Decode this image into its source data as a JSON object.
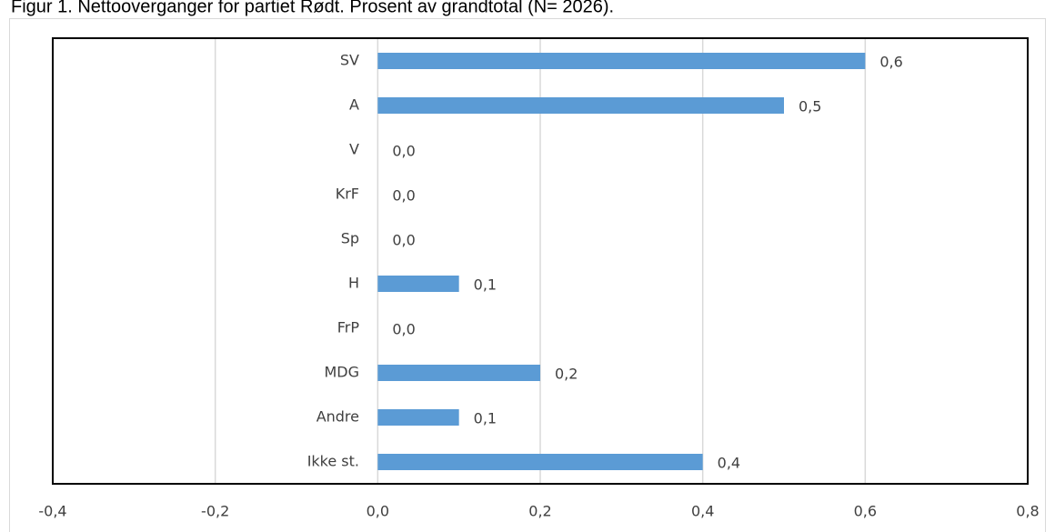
{
  "chart_data": {
    "type": "barh",
    "title": "Figur 1. Nettooverganger for partiet Rødt. Prosent av grandtotal (N= 2026).",
    "categories": [
      "SV",
      "A",
      "V",
      "KrF",
      "Sp",
      "H",
      "FrP",
      "MDG",
      "Andre",
      "Ikke st."
    ],
    "values": [
      0.6,
      0.5,
      0.0,
      0.0,
      0.0,
      0.1,
      0.0,
      0.2,
      0.1,
      0.4
    ],
    "value_labels": [
      "0,6",
      "0,5",
      "0,0",
      "0,0",
      "0,0",
      "0,1",
      "0,0",
      "0,2",
      "0,1",
      "0,4"
    ],
    "color": "#5b9bd5",
    "xlim": [
      -0.4,
      0.8
    ],
    "xticks": [
      {
        "value": -0.4,
        "label": "-0,4"
      },
      {
        "value": -0.2,
        "label": "-0,2"
      },
      {
        "value": 0.0,
        "label": "0,0"
      },
      {
        "value": 0.2,
        "label": "0,2"
      },
      {
        "value": 0.4,
        "label": "0,4"
      },
      {
        "value": 0.6,
        "label": "0,6"
      },
      {
        "value": 0.8,
        "label": "0,8"
      }
    ],
    "grid": true
  }
}
